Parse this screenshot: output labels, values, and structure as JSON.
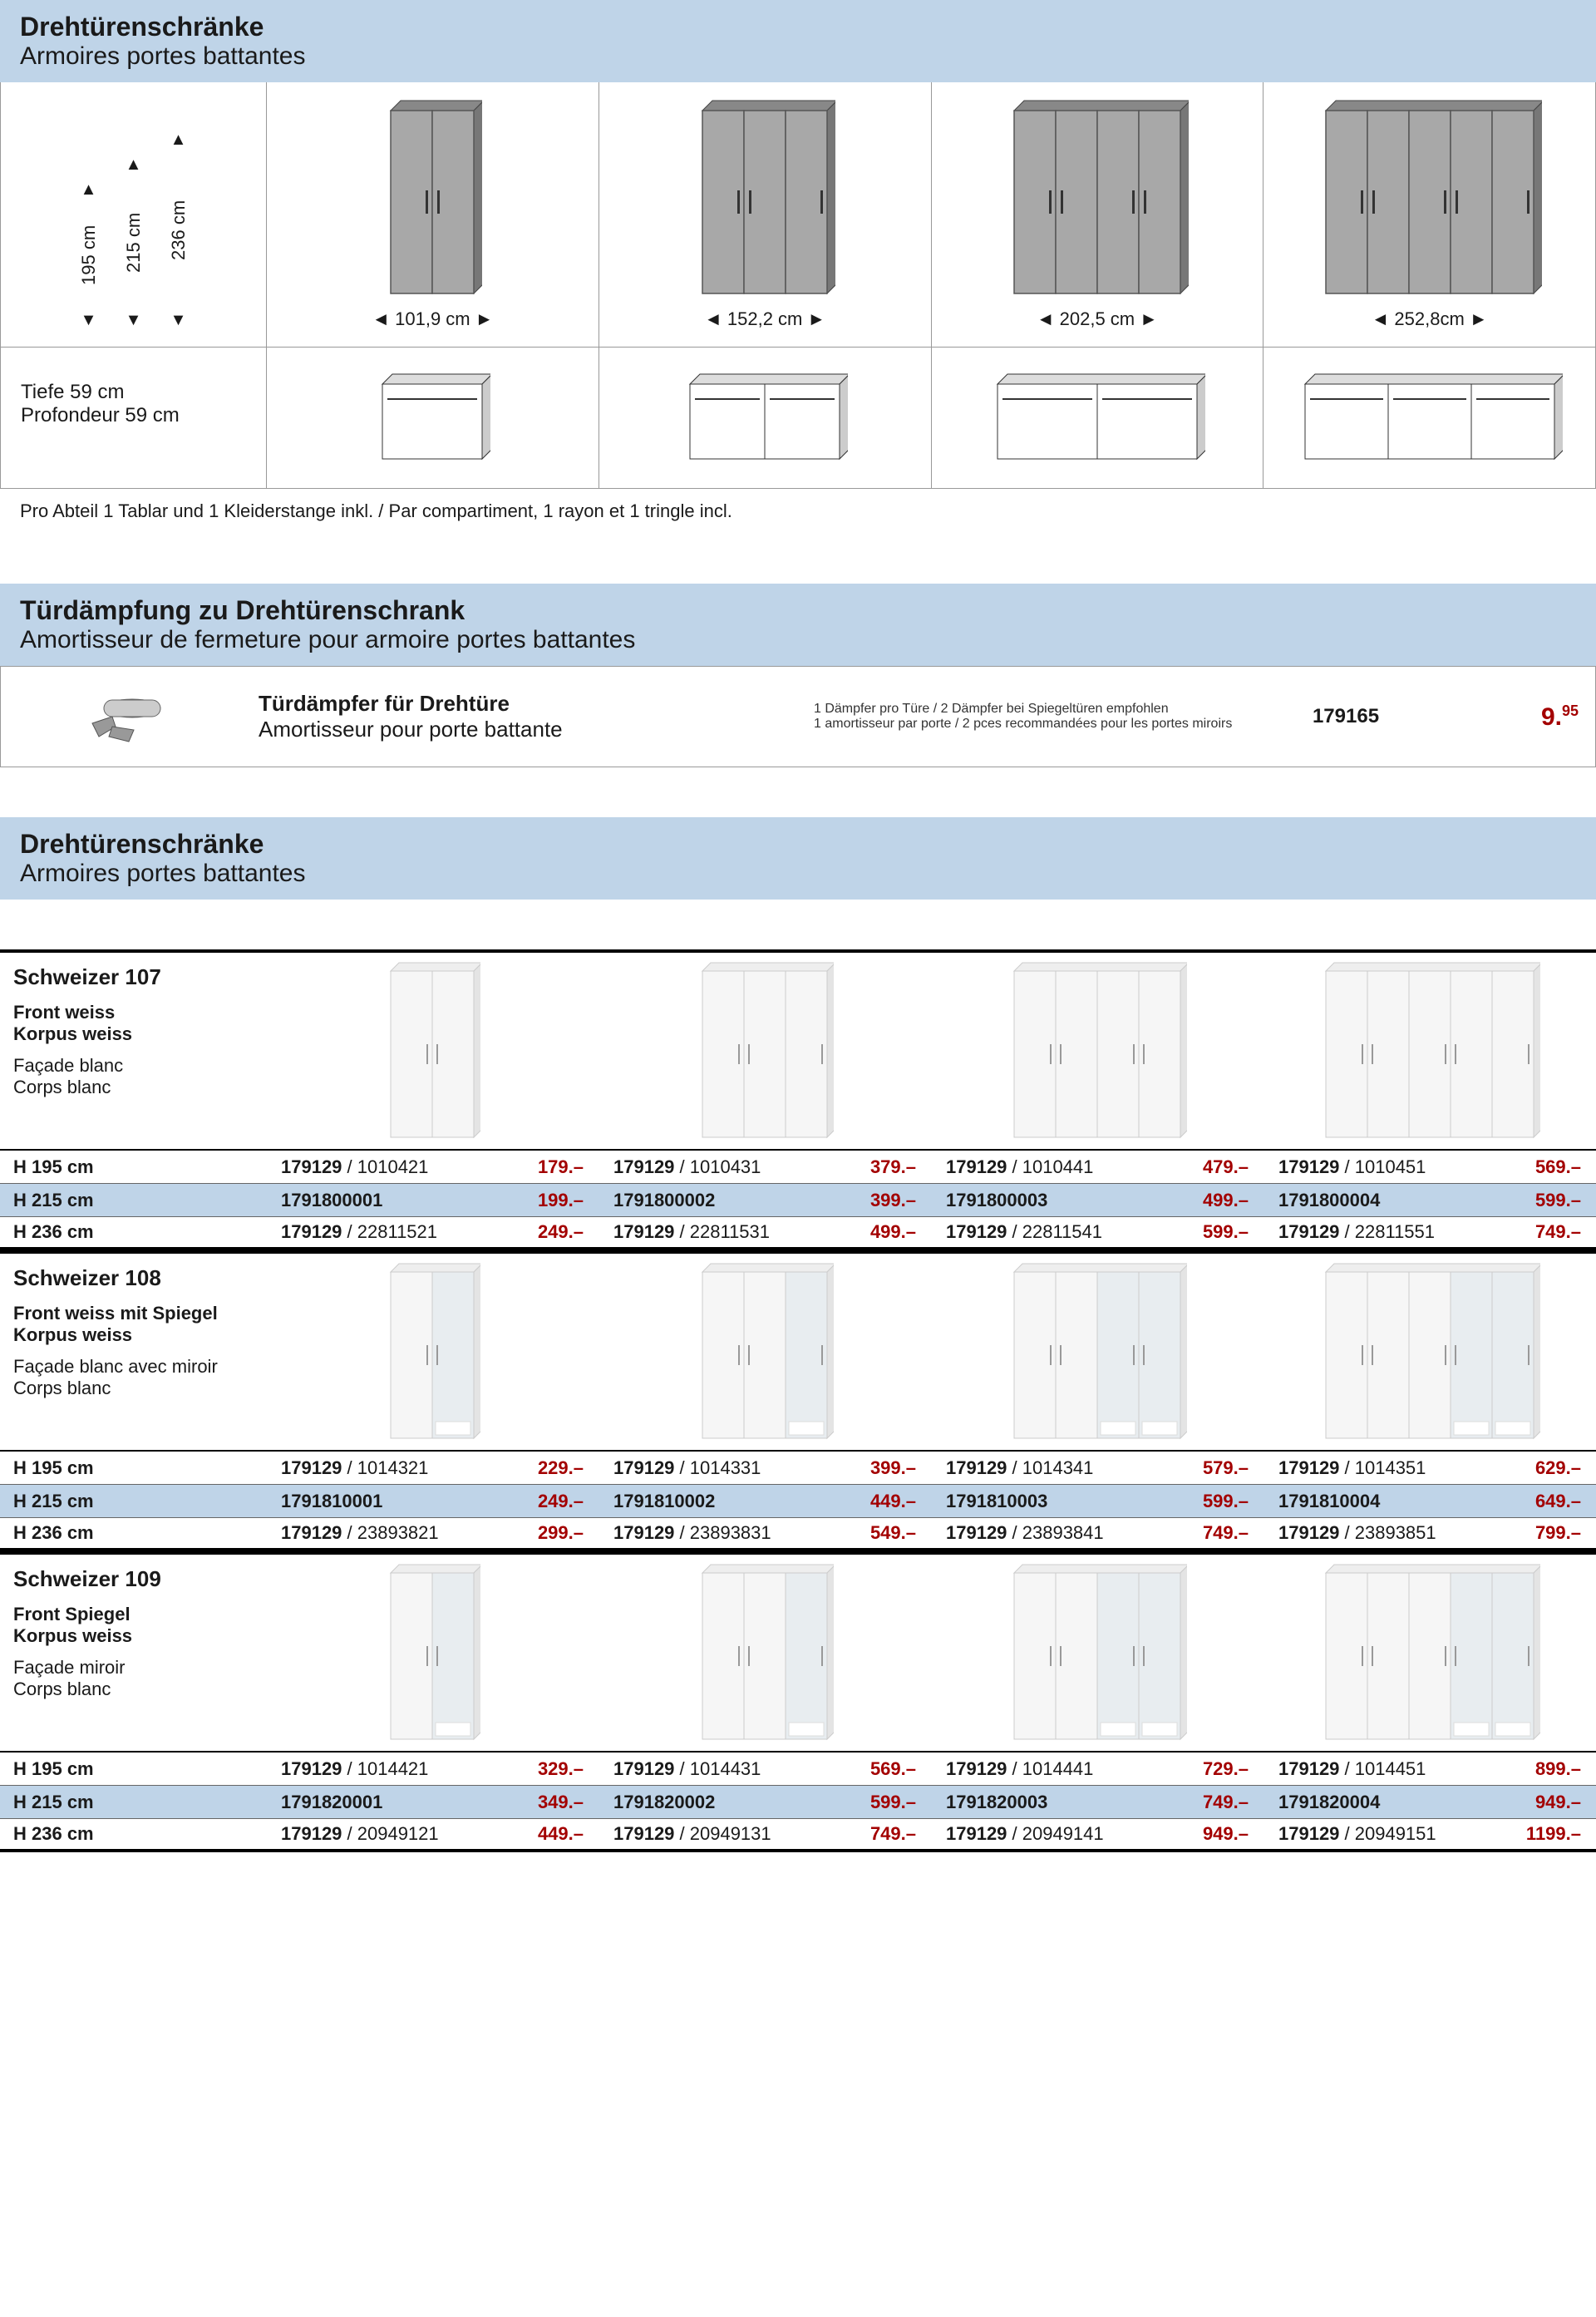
{
  "colors": {
    "header_bg": "#bfd4e8",
    "price": "#a30000",
    "border": "#999999",
    "thick_border": "#000000"
  },
  "section1": {
    "title_de": "Drehtürenschränke",
    "title_fr": "Armoires portes battantes",
    "heights": [
      "195 cm",
      "215 cm",
      "236 cm"
    ],
    "widths": [
      "101,9 cm",
      "152,2 cm",
      "202,5 cm",
      "252,8cm"
    ],
    "depth_de": "Tiefe 59 cm",
    "depth_fr": "Profondeur 59 cm",
    "note": "Pro Abteil 1 Tablar und 1 Kleiderstange inkl. / Par compartiment, 1 rayon et 1 tringle incl."
  },
  "damper_section": {
    "title_de": "Türdämpfung zu Drehtürenschrank",
    "title_fr": "Amortisseur de fermeture pour armoire portes battantes",
    "product_de": "Türdämpfer für Drehtüre",
    "product_fr": "Amortisseur pour porte battante",
    "note_de": "1 Dämpfer pro Türe / 2 Dämpfer bei Spiegeltüren empfohlen",
    "note_fr": "1 amortisseur par porte / 2 pces recommandées pour les portes miroirs",
    "sku": "179165",
    "price_main": "9.",
    "price_cents": "95"
  },
  "section2": {
    "title_de": "Drehtürenschränke",
    "title_fr": "Armoires portes battantes",
    "height_labels": [
      "H 195 cm",
      "H 215 cm",
      "H 236 cm"
    ],
    "doors": [
      2,
      3,
      4,
      5
    ],
    "groups": [
      {
        "name": "Schweizer 107",
        "spec_de": "Front weiss\nKorpus weiss",
        "spec_fr": "Façade blanc\nCorps blanc",
        "mirror": false,
        "rows": [
          {
            "h": "H 195 cm",
            "cells": [
              {
                "sku": "179129 / 1010421",
                "p": "179.–"
              },
              {
                "sku": "179129 / 1010431",
                "p": "379.–"
              },
              {
                "sku": "179129 / 1010441",
                "p": "479.–"
              },
              {
                "sku": "179129 / 1010451",
                "p": "569.–"
              }
            ],
            "hl": false
          },
          {
            "h": "H 215 cm",
            "cells": [
              {
                "sku": "1791800001",
                "p": "199.–"
              },
              {
                "sku": "1791800002",
                "p": "399.–"
              },
              {
                "sku": "1791800003",
                "p": "499.–"
              },
              {
                "sku": "1791800004",
                "p": "599.–"
              }
            ],
            "hl": true
          },
          {
            "h": "H 236 cm",
            "cells": [
              {
                "sku": "179129 / 22811521",
                "p": "249.–"
              },
              {
                "sku": "179129 / 22811531",
                "p": "499.–"
              },
              {
                "sku": "179129 / 22811541",
                "p": "599.–"
              },
              {
                "sku": "179129 / 22811551",
                "p": "749.–"
              }
            ],
            "hl": false
          }
        ]
      },
      {
        "name": "Schweizer 108",
        "spec_de": "Front weiss mit Spiegel\nKorpus weiss",
        "spec_fr": "Façade blanc avec miroir\nCorps blanc",
        "mirror": true,
        "rows": [
          {
            "h": "H 195 cm",
            "cells": [
              {
                "sku": "179129 / 1014321",
                "p": "229.–"
              },
              {
                "sku": "179129 / 1014331",
                "p": "399.–"
              },
              {
                "sku": "179129 / 1014341",
                "p": "579.–"
              },
              {
                "sku": "179129 / 1014351",
                "p": "629.–"
              }
            ],
            "hl": false
          },
          {
            "h": "H 215 cm",
            "cells": [
              {
                "sku": "1791810001",
                "p": "249.–"
              },
              {
                "sku": "1791810002",
                "p": "449.–"
              },
              {
                "sku": "1791810003",
                "p": "599.–"
              },
              {
                "sku": "1791810004",
                "p": "649.–"
              }
            ],
            "hl": true
          },
          {
            "h": "H 236 cm",
            "cells": [
              {
                "sku": "179129 / 23893821",
                "p": "299.–"
              },
              {
                "sku": "179129 / 23893831",
                "p": "549.–"
              },
              {
                "sku": "179129 / 23893841",
                "p": "749.–"
              },
              {
                "sku": "179129 / 23893851",
                "p": "799.–"
              }
            ],
            "hl": false
          }
        ]
      },
      {
        "name": "Schweizer 109",
        "spec_de": "Front Spiegel\nKorpus weiss",
        "spec_fr": "Façade miroir\nCorps blanc",
        "mirror": true,
        "rows": [
          {
            "h": "H 195 cm",
            "cells": [
              {
                "sku": "179129 / 1014421",
                "p": "329.–"
              },
              {
                "sku": "179129 / 1014431",
                "p": "569.–"
              },
              {
                "sku": "179129 / 1014441",
                "p": "729.–"
              },
              {
                "sku": "179129 / 1014451",
                "p": "899.–"
              }
            ],
            "hl": false
          },
          {
            "h": "H 215 cm",
            "cells": [
              {
                "sku": "1791820001",
                "p": "349.–"
              },
              {
                "sku": "1791820002",
                "p": "599.–"
              },
              {
                "sku": "1791820003",
                "p": "749.–"
              },
              {
                "sku": "1791820004",
                "p": "949.–"
              }
            ],
            "hl": true
          },
          {
            "h": "H 236 cm",
            "cells": [
              {
                "sku": "179129 / 20949121",
                "p": "449.–"
              },
              {
                "sku": "179129 / 20949131",
                "p": "749.–"
              },
              {
                "sku": "179129 / 20949141",
                "p": "949.–"
              },
              {
                "sku": "179129 / 20949151",
                "p": "1199.–"
              }
            ],
            "hl": false
          }
        ]
      }
    ]
  }
}
